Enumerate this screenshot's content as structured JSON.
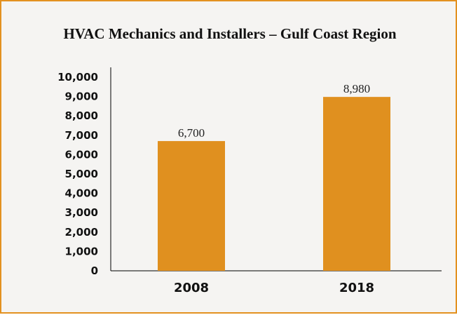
{
  "chart_data": {
    "type": "bar",
    "title": "HVAC Mechanics and Installers – Gulf Coast Region",
    "xlabel": "",
    "ylabel": "",
    "categories": [
      "2008",
      "2018"
    ],
    "values": [
      6700,
      8980
    ],
    "data_labels": [
      "6,700",
      "8,980"
    ],
    "ylim": [
      0,
      10000
    ],
    "yticks": [
      0,
      1000,
      2000,
      3000,
      4000,
      5000,
      6000,
      7000,
      8000,
      9000,
      10000
    ],
    "ytick_labels": [
      "0",
      "1,000",
      "2,000",
      "3,000",
      "4,000",
      "5,000",
      "6,000",
      "7,000",
      "8,000",
      "9,000",
      "10,000"
    ],
    "grid": false,
    "legend": "none",
    "bar_color": "#E0901F",
    "border_color": "#E39120",
    "background_color": "#F5F4F2"
  }
}
